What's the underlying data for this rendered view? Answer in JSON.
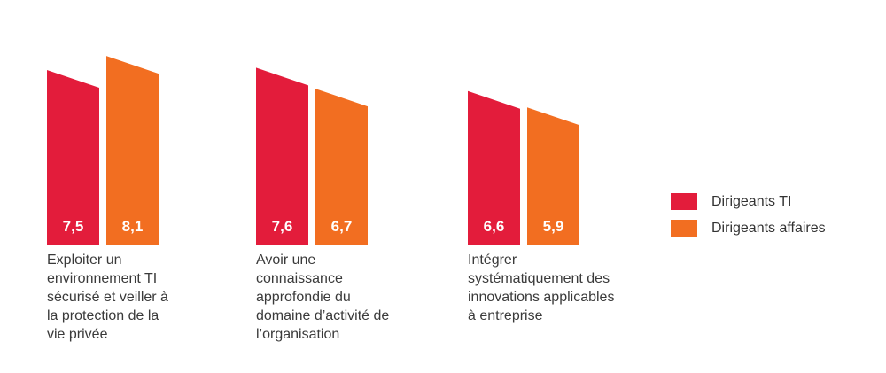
{
  "chart_data": {
    "type": "bar",
    "title": "",
    "xlabel": "",
    "ylabel": "",
    "ylim": [
      0,
      10
    ],
    "grid": false,
    "legend_position": "right",
    "bar_style": "slanted-top",
    "decimal_separator": ",",
    "categories": [
      "Exploiter un environnement TI sécurisé et veiller à la protection de la vie privée",
      "Avoir une connaissance approfondie du domaine d’activité de l’organisation",
      "Intégrer systématiquement des innovations applicables à entreprise"
    ],
    "category_lines": [
      [
        "Exploiter un",
        "environnement TI",
        "sécurisé et veiller à",
        "la protection de la",
        "vie privée"
      ],
      [
        "Avoir une",
        "connaissance",
        "approfondie du",
        "domaine d’activité de",
        "l’organisation"
      ],
      [
        "Intégrer",
        "systématiquement des",
        "innovations applicables",
        "à entreprise"
      ]
    ],
    "series": [
      {
        "name": "Dirigeants TI",
        "color": "#E31C3B",
        "values": [
          7.5,
          7.6,
          6.6
        ],
        "display": [
          "7,5",
          "7,6",
          "6,6"
        ]
      },
      {
        "name": "Dirigeants affaires",
        "color": "#F26E21",
        "values": [
          8.1,
          6.7,
          5.9
        ],
        "display": [
          "8,1",
          "6,7",
          "5,9"
        ]
      }
    ]
  },
  "colors": {
    "background": "#FFFFFF",
    "value_label": "#FFFFFF",
    "category_text": "#3A3A3A",
    "legend_text": "#333333"
  }
}
